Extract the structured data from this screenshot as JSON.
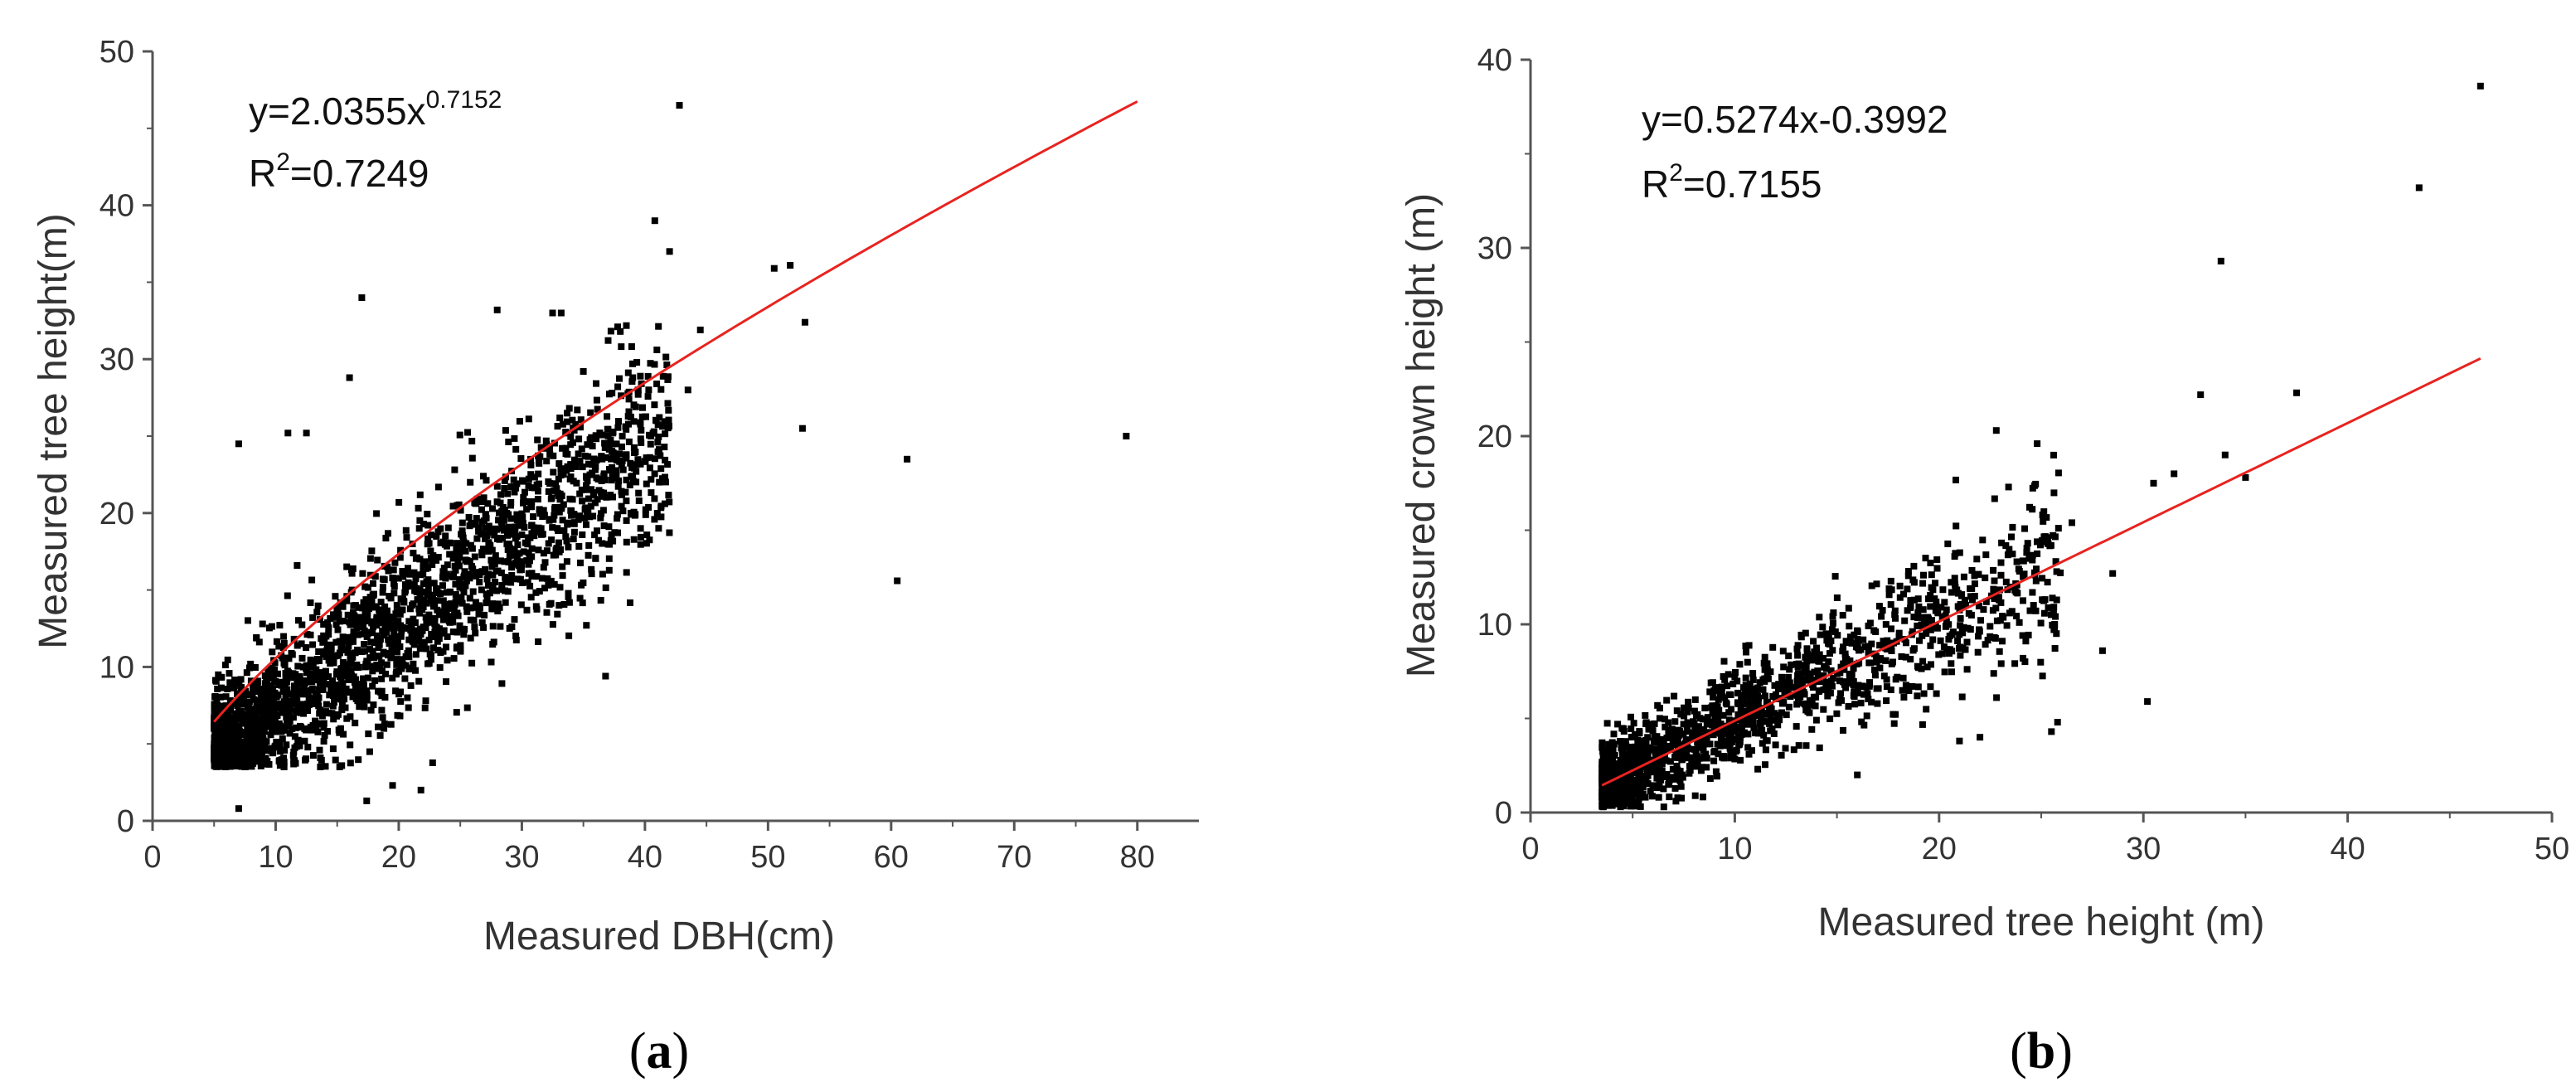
{
  "chart_data": [
    {
      "type": "scatter",
      "panel_label": "a",
      "xlabel": "Measured DBH(cm)",
      "ylabel": "Measured tree height(m)",
      "xlim": [
        0,
        85
      ],
      "ylim": [
        0,
        50
      ],
      "xticks": [
        0,
        10,
        20,
        30,
        40,
        50,
        60,
        70,
        80
      ],
      "yticks": [
        0,
        10,
        20,
        30,
        40,
        50
      ],
      "equation": {
        "prefix": "y=2.0355x",
        "exponent": "0.7152"
      },
      "r2": {
        "prefix": "R",
        "sup": "2",
        "value": "=0.7249"
      },
      "fit": {
        "model": "power",
        "a": 2.0355,
        "b": 0.7152,
        "x_range": [
          5,
          80
        ],
        "color": "#e8231f"
      },
      "point_color": "#000000",
      "dense_cloud": {
        "x_range": [
          5,
          42
        ],
        "center_fn": "1.2 + 0.58x",
        "spread": 2.6,
        "n": 2400
      },
      "outliers": [
        [
          42.8,
          46.5
        ],
        [
          40.8,
          39.0
        ],
        [
          42.0,
          37.0
        ],
        [
          17.0,
          34.0
        ],
        [
          28.0,
          33.2
        ],
        [
          32.5,
          33.0
        ],
        [
          33.2,
          33.0
        ],
        [
          50.5,
          35.9
        ],
        [
          51.8,
          36.1
        ],
        [
          53.0,
          32.4
        ],
        [
          44.5,
          31.9
        ],
        [
          38.0,
          31.8
        ],
        [
          35.0,
          29.2
        ],
        [
          39.0,
          29.7
        ],
        [
          52.8,
          25.5
        ],
        [
          61.3,
          23.5
        ],
        [
          79.1,
          25.0
        ],
        [
          60.5,
          15.6
        ],
        [
          36.8,
          9.4
        ],
        [
          17.4,
          1.3
        ],
        [
          21.8,
          2.0
        ],
        [
          19.5,
          2.3
        ],
        [
          7.0,
          0.8
        ],
        [
          15.2,
          3.5
        ],
        [
          18.8,
          6.0
        ],
        [
          7.0,
          24.5
        ],
        [
          11.0,
          25.2
        ],
        [
          12.5,
          25.2
        ],
        [
          16.0,
          28.8
        ],
        [
          43.5,
          28.0
        ]
      ]
    },
    {
      "type": "scatter",
      "panel_label": "b",
      "xlabel": "Measured tree height (m)",
      "ylabel": "Measured crown height (m)",
      "xlim": [
        0,
        50
      ],
      "ylim": [
        0,
        40
      ],
      "xticks": [
        0,
        10,
        20,
        30,
        40,
        50
      ],
      "yticks": [
        0,
        10,
        20,
        30,
        40
      ],
      "equation": {
        "prefix": "y=0.5274x-0.3992",
        "exponent": ""
      },
      "r2": {
        "prefix": "R",
        "sup": "2",
        "value": "=0.7155"
      },
      "fit": {
        "model": "linear",
        "a": 0.5274,
        "b": -0.3992,
        "x_range": [
          3.5,
          46.5
        ],
        "color": "#e8231f"
      },
      "point_color": "#000000",
      "dense_cloud": {
        "x_range": [
          3.5,
          26
        ],
        "center_fn": "0.5274x - 0.3992",
        "spread": 1.3,
        "n": 1600
      },
      "outliers": [
        [
          46.5,
          38.6
        ],
        [
          43.5,
          33.2
        ],
        [
          33.8,
          29.3
        ],
        [
          32.8,
          22.2
        ],
        [
          37.5,
          22.3
        ],
        [
          34.0,
          19.0
        ],
        [
          35.0,
          17.8
        ],
        [
          30.5,
          17.5
        ],
        [
          31.5,
          18.0
        ],
        [
          22.8,
          20.3
        ],
        [
          24.8,
          19.6
        ],
        [
          28.5,
          12.7
        ],
        [
          28.0,
          8.6
        ],
        [
          30.2,
          5.9
        ],
        [
          25.5,
          4.3
        ],
        [
          25.8,
          4.8
        ],
        [
          26.5,
          15.4
        ],
        [
          22.0,
          4.0
        ],
        [
          21.0,
          3.8
        ],
        [
          16.0,
          2.0
        ]
      ]
    }
  ]
}
